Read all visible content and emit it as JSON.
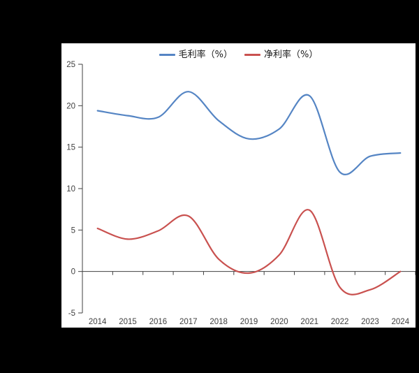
{
  "background_color": "#000000",
  "panel_color": "#ffffff",
  "legend": {
    "items": [
      {
        "label": "毛利率（%）",
        "color": "#5585C4"
      },
      {
        "label": "净利率（%）",
        "color": "#C9514F"
      }
    ]
  },
  "chart_data": {
    "type": "line",
    "smooth": true,
    "title": "",
    "xlabel": "",
    "ylabel": "",
    "x": [
      "2014",
      "2015",
      "2016",
      "2017",
      "2018",
      "2019",
      "2020",
      "2021",
      "2022",
      "2023",
      "2024"
    ],
    "series": [
      {
        "name": "毛利率（%）",
        "color": "#5585C4",
        "values": [
          19.4,
          18.8,
          18.6,
          21.7,
          18.2,
          16.0,
          17.2,
          21.2,
          12.0,
          13.9,
          14.3
        ]
      },
      {
        "name": "净利率（%）",
        "color": "#C9514F",
        "values": [
          5.2,
          3.9,
          4.9,
          6.7,
          1.5,
          -0.2,
          2.0,
          7.4,
          -1.9,
          -2.2,
          0.0
        ]
      }
    ],
    "ylim": [
      -5,
      25
    ],
    "yticks": [
      25,
      20,
      15,
      10,
      5,
      0,
      -5
    ],
    "grid": false,
    "legend_position": "top-center",
    "axis_color": "#404040",
    "tick_label_color": "#404040"
  }
}
